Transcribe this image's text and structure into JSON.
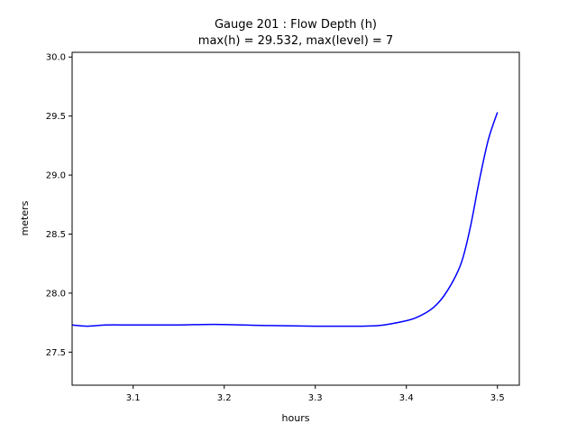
{
  "chart_data": {
    "type": "line",
    "title": "Gauge 201 : Flow Depth (h)",
    "subtitle": "max(h) =  29.532,    max(level) = 7",
    "xlabel": "hours",
    "ylabel": "meters",
    "xlim": [
      3.033,
      3.524
    ],
    "ylim": [
      27.22,
      30.04
    ],
    "xticks": [
      3.1,
      3.2,
      3.3,
      3.4,
      3.5
    ],
    "yticks": [
      27.5,
      28.0,
      28.5,
      29.0,
      29.5,
      30.0
    ],
    "xtick_labels": [
      "3.1",
      "3.2",
      "3.3",
      "3.4",
      "3.5"
    ],
    "ytick_labels": [
      "27.5",
      "28.0",
      "28.5",
      "29.0",
      "29.5",
      "30.0"
    ],
    "grid": false,
    "series": [
      {
        "color": "#0000ff",
        "x": [
          3.033,
          3.05,
          3.07,
          3.1,
          3.15,
          3.19,
          3.25,
          3.3,
          3.35,
          3.37,
          3.39,
          3.41,
          3.43,
          3.445,
          3.46,
          3.47,
          3.48,
          3.49,
          3.5
        ],
        "y": [
          27.73,
          27.72,
          27.73,
          27.73,
          27.73,
          27.735,
          27.725,
          27.72,
          27.72,
          27.725,
          27.75,
          27.79,
          27.88,
          28.02,
          28.25,
          28.55,
          28.95,
          29.3,
          29.532
        ]
      }
    ]
  }
}
